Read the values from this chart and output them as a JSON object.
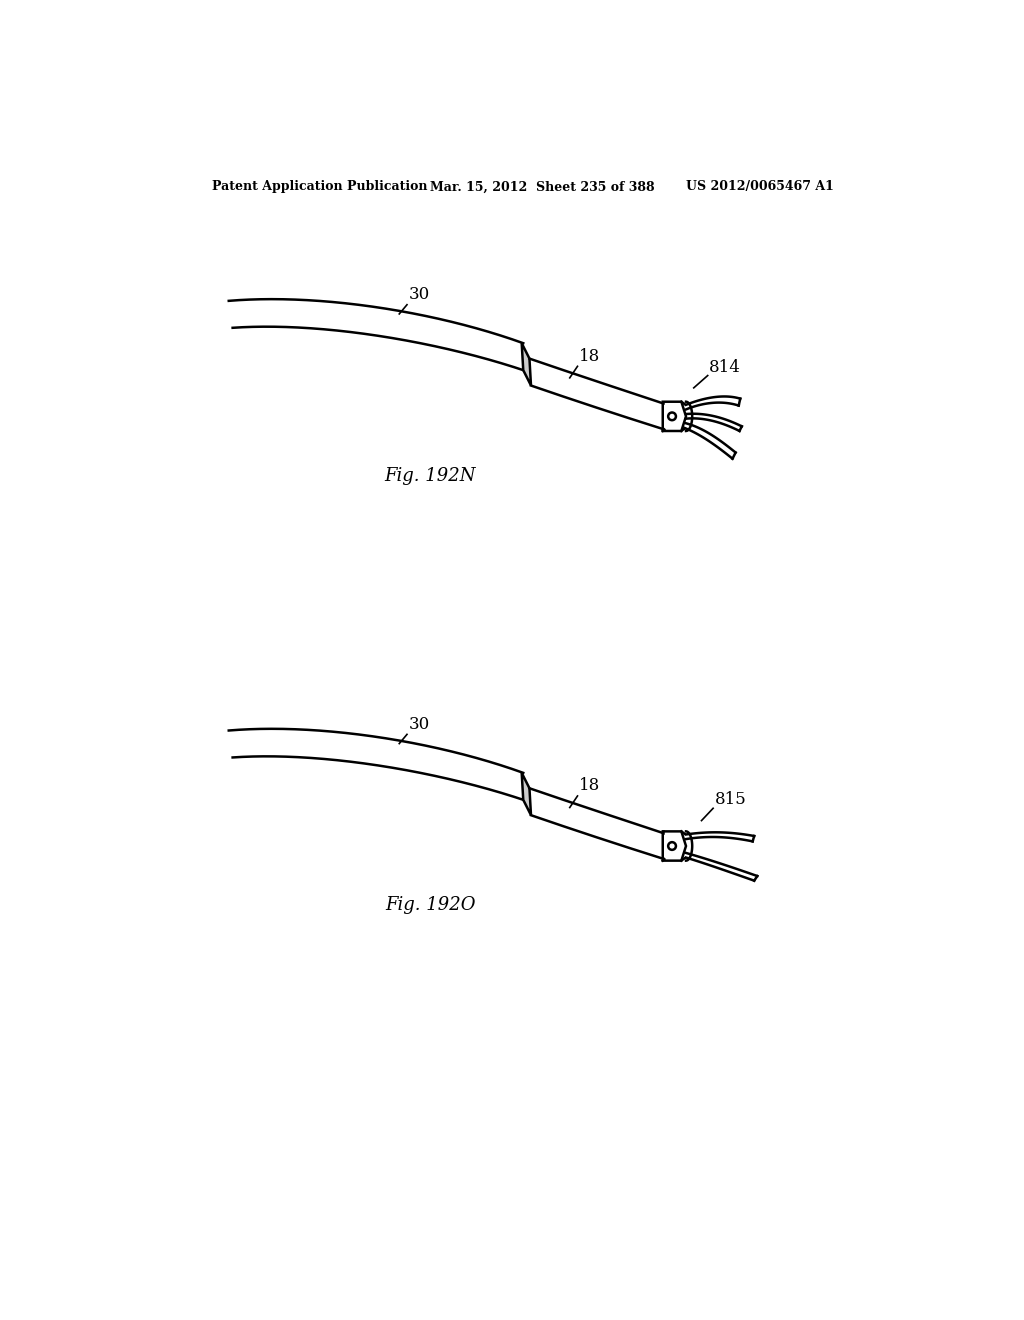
{
  "bg_color": "#ffffff",
  "line_color": "#000000",
  "header_left": "Patent Application Publication",
  "header_mid": "Mar. 15, 2012  Sheet 235 of 388",
  "header_right": "US 2012/0065467 A1",
  "fig1_label": "Fig. 192N",
  "fig2_label": "Fig. 192O",
  "label_30_1": "30",
  "label_18_1": "18",
  "label_814": "814",
  "label_30_2": "30",
  "label_18_2": "18",
  "label_815": "815"
}
